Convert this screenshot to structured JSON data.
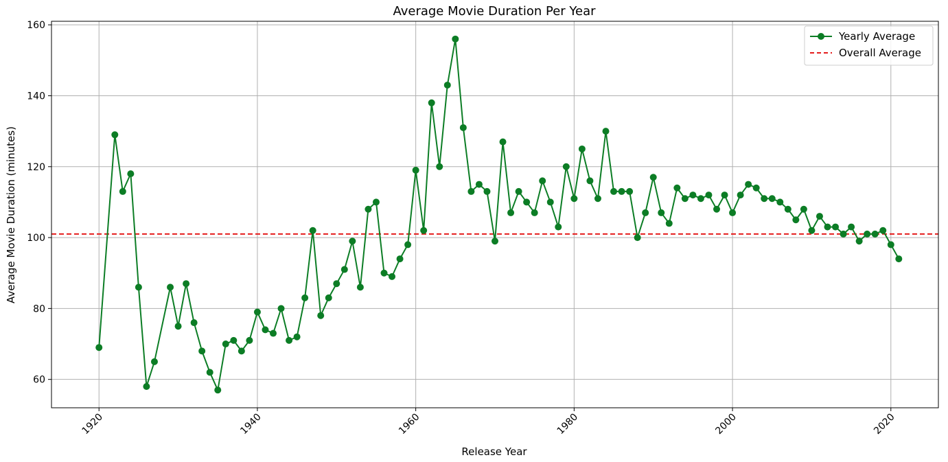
{
  "chart_data": {
    "type": "line",
    "title": "Average Movie Duration Per Year",
    "xlabel": "Release Year",
    "ylabel": "Average Movie Duration (minutes)",
    "xlim": [
      1914,
      2026
    ],
    "ylim": [
      52,
      161
    ],
    "xticks": [
      1920,
      1940,
      1960,
      1980,
      2000,
      2020
    ],
    "yticks": [
      60,
      80,
      100,
      120,
      140,
      160
    ],
    "grid": true,
    "legend_position": "top-right",
    "series": [
      {
        "name": "Yearly Average",
        "color": "#0c7d25",
        "x": [
          1920,
          1922,
          1923,
          1924,
          1925,
          1926,
          1927,
          1929,
          1930,
          1931,
          1932,
          1933,
          1934,
          1935,
          1936,
          1937,
          1938,
          1939,
          1940,
          1941,
          1942,
          1943,
          1944,
          1945,
          1946,
          1947,
          1948,
          1949,
          1950,
          1951,
          1952,
          1953,
          1954,
          1955,
          1956,
          1957,
          1958,
          1959,
          1960,
          1961,
          1962,
          1963,
          1964,
          1965,
          1966,
          1967,
          1968,
          1969,
          1970,
          1971,
          1972,
          1973,
          1974,
          1975,
          1976,
          1977,
          1978,
          1979,
          1980,
          1981,
          1982,
          1983,
          1984,
          1985,
          1986,
          1987,
          1988,
          1989,
          1990,
          1991,
          1992,
          1993,
          1994,
          1995,
          1996,
          1997,
          1998,
          1999,
          2000,
          2001,
          2002,
          2003,
          2004,
          2005,
          2006,
          2007,
          2008,
          2009,
          2010,
          2011,
          2012,
          2013,
          2014,
          2015,
          2016,
          2017,
          2018,
          2019,
          2020,
          2021
        ],
        "values": [
          69,
          129,
          113,
          118,
          86,
          58,
          65,
          86,
          75,
          87,
          76,
          68,
          62,
          57,
          70,
          71,
          68,
          71,
          79,
          74,
          73,
          80,
          71,
          72,
          83,
          102,
          78,
          83,
          87,
          91,
          99,
          86,
          108,
          110,
          90,
          89,
          94,
          98,
          119,
          102,
          138,
          120,
          143,
          156,
          131,
          113,
          115,
          113,
          99,
          127,
          107,
          113,
          110,
          107,
          116,
          110,
          103,
          120,
          111,
          125,
          116,
          111,
          130,
          113,
          113,
          113,
          100,
          107,
          117,
          107,
          104,
          114,
          111,
          112,
          111,
          112,
          108,
          112,
          107,
          112,
          115,
          114,
          111,
          111,
          110,
          108,
          105,
          108,
          102,
          106,
          103,
          103,
          101,
          103,
          99,
          101,
          101,
          102,
          98,
          94
        ]
      },
      {
        "name": "Overall Average",
        "color": "#e41b1b",
        "constant": 101
      }
    ]
  }
}
